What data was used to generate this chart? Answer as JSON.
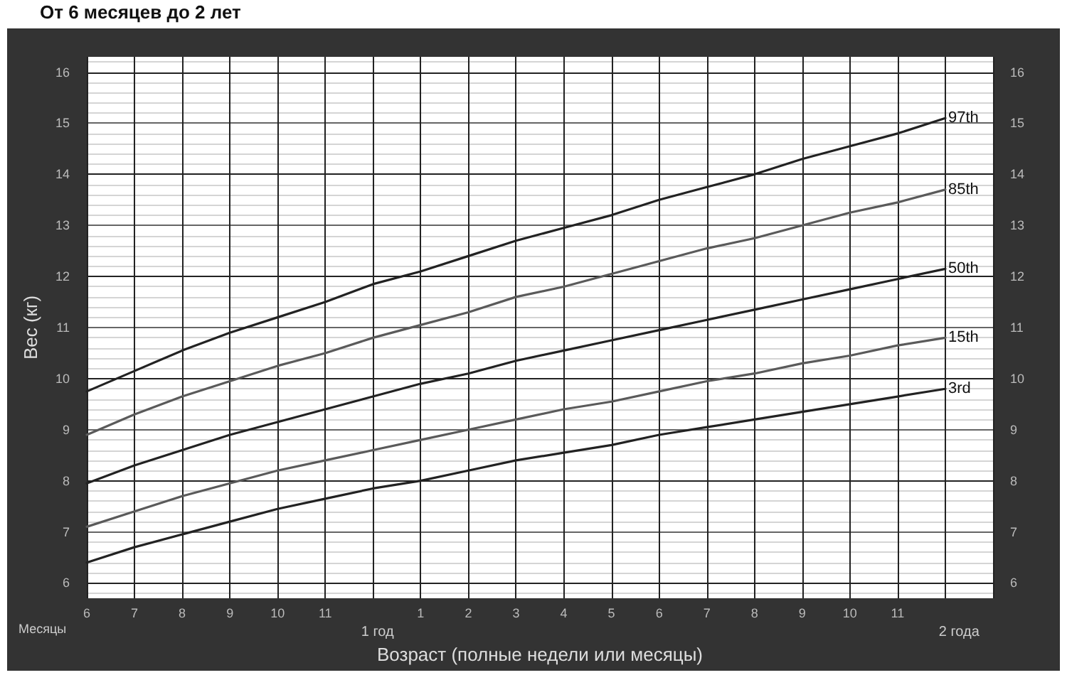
{
  "chart_data": {
    "type": "line",
    "title": "От 6 месяцев до 2 лет",
    "xlabel": "Возраст (полные недели или месяцы)",
    "ylabel": "Вес (кг)",
    "annotations": [
      "Месяцы",
      "1 год",
      "2 года"
    ],
    "categories": [
      "6",
      "7",
      "8",
      "9",
      "10",
      "11",
      null,
      "1",
      "2",
      "3",
      "4",
      "5",
      "6",
      "7",
      "8",
      "9",
      "10",
      "11",
      null
    ],
    "series": [
      {
        "name": "97th",
        "color": "#222222",
        "values": [
          9.75,
          10.15,
          10.55,
          10.9,
          11.2,
          11.5,
          11.85,
          12.1,
          12.4,
          12.7,
          12.95,
          13.2,
          13.5,
          13.75,
          14.0,
          14.3,
          14.55,
          14.8,
          15.1
        ]
      },
      {
        "name": "85th",
        "color": "#5a5a5a",
        "values": [
          8.9,
          9.3,
          9.65,
          9.95,
          10.25,
          10.5,
          10.8,
          11.05,
          11.3,
          11.6,
          11.8,
          12.05,
          12.3,
          12.55,
          12.75,
          13.0,
          13.25,
          13.45,
          13.7
        ]
      },
      {
        "name": "50th",
        "color": "#222222",
        "values": [
          7.95,
          8.3,
          8.6,
          8.9,
          9.15,
          9.4,
          9.65,
          9.9,
          10.1,
          10.35,
          10.55,
          10.75,
          10.95,
          11.15,
          11.35,
          11.55,
          11.75,
          11.95,
          12.15
        ]
      },
      {
        "name": "15th",
        "color": "#5a5a5a",
        "values": [
          7.1,
          7.4,
          7.7,
          7.95,
          8.2,
          8.4,
          8.6,
          8.8,
          9.0,
          9.2,
          9.4,
          9.55,
          9.75,
          9.95,
          10.1,
          10.3,
          10.45,
          10.65,
          10.8
        ]
      },
      {
        "name": "3rd",
        "color": "#222222",
        "values": [
          6.4,
          6.7,
          6.95,
          7.2,
          7.45,
          7.65,
          7.85,
          8.0,
          8.2,
          8.4,
          8.55,
          8.7,
          8.9,
          9.05,
          9.2,
          9.35,
          9.5,
          9.65,
          9.8
        ]
      }
    ],
    "ylim": [
      5.7,
      16.3
    ],
    "yticks": [
      6,
      7,
      8,
      9,
      10,
      11,
      12,
      13,
      14,
      15,
      16
    ],
    "y2lim": [
      5.7,
      16.3
    ],
    "y2ticks": [
      6,
      7,
      8,
      9,
      10,
      11,
      12,
      13,
      14,
      15,
      16
    ],
    "grid": true,
    "legend": false,
    "marker": "none",
    "line_style": "solid"
  }
}
